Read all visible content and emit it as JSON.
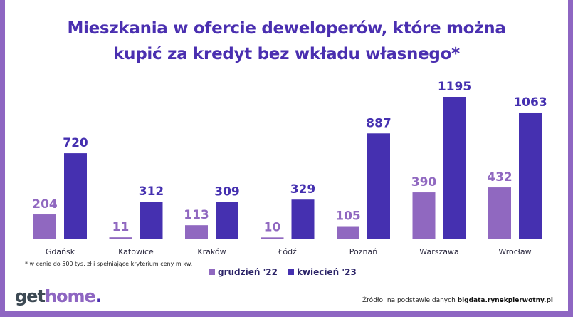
{
  "colors": {
    "grudzien": "#9068c0",
    "kwiecien": "#4530b0",
    "frame": "#8e66c2"
  },
  "logo": {
    "part1": "get",
    "part2": "home",
    "part3": "."
  },
  "note": "* w cenie do 500 tys. zł i spełniające kryterium ceny m kw.",
  "source": {
    "prefix": "Źródło: na podstawie danych ",
    "domain": "bigdata.rynekpierwotny.pl"
  },
  "chart_data": {
    "type": "bar",
    "title_line1": "Mieszkania w ofercie deweloperów, które można",
    "title_line2": "kupić za kredyt bez wkładu własnego*",
    "categories": [
      "Gdańsk",
      "Katowice",
      "Kraków",
      "Łódź",
      "Poznań",
      "Warszawa",
      "Wrocław"
    ],
    "series": [
      {
        "name": "grudzień '22",
        "values": [
          204,
          11,
          113,
          10,
          105,
          390,
          432
        ]
      },
      {
        "name": "kwiecień '23",
        "values": [
          720,
          312,
          309,
          329,
          887,
          1195,
          1063
        ]
      }
    ],
    "ylim": [
      0,
      1195
    ],
    "grid": false,
    "legend": "bottom-center"
  }
}
